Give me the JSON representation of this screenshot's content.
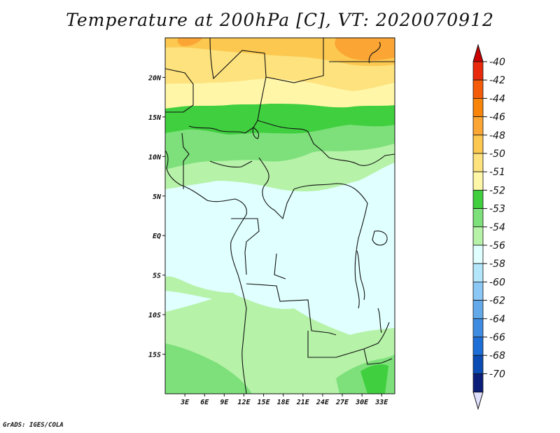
{
  "title": "Temperature at 200hPa [C], VT: 2020070912",
  "credit": "GrADS: IGES/COLA",
  "map": {
    "lon_range": [
      0,
      35
    ],
    "lat_range": [
      -20,
      25
    ],
    "lat_ticks": [
      {
        "value": 20,
        "label": "20N"
      },
      {
        "value": 15,
        "label": "15N"
      },
      {
        "value": 10,
        "label": "10N"
      },
      {
        "value": 5,
        "label": "5N"
      },
      {
        "value": 0,
        "label": "EQ"
      },
      {
        "value": -5,
        "label": "5S"
      },
      {
        "value": -10,
        "label": "10S"
      },
      {
        "value": -15,
        "label": "15S"
      }
    ],
    "lon_ticks": [
      {
        "value": 3,
        "label": "3E"
      },
      {
        "value": 6,
        "label": "6E"
      },
      {
        "value": 9,
        "label": "9E"
      },
      {
        "value": 12,
        "label": "12E"
      },
      {
        "value": 15,
        "label": "15E"
      },
      {
        "value": 18,
        "label": "18E"
      },
      {
        "value": 21,
        "label": "21E"
      },
      {
        "value": 24,
        "label": "24E"
      },
      {
        "value": 27,
        "label": "27E"
      },
      {
        "value": 30,
        "label": "30E"
      },
      {
        "value": 33,
        "label": "33E"
      }
    ]
  },
  "colorbar": {
    "levels": [
      "-40",
      "-42",
      "-44",
      "-46",
      "-48",
      "-50",
      "-51",
      "-52",
      "-53",
      "-54",
      "-56",
      "-58",
      "-60",
      "-62",
      "-64",
      "-66",
      "-68",
      "-70"
    ],
    "colors": [
      "#e8290b",
      "#f45c0a",
      "#f8840a",
      "#fba535",
      "#fcc850",
      "#fde27d",
      "#fff6a8",
      "#3fcf3f",
      "#7de07a",
      "#b6f2a8",
      "#e0ffff",
      "#b4e6fb",
      "#8cc8f5",
      "#64aaeb",
      "#3e8ce1",
      "#1e6ed7",
      "#0a4bb4",
      "#0b1e7a"
    ],
    "top_color": "#c80000",
    "bottom_color": "#e0e0ff"
  }
}
